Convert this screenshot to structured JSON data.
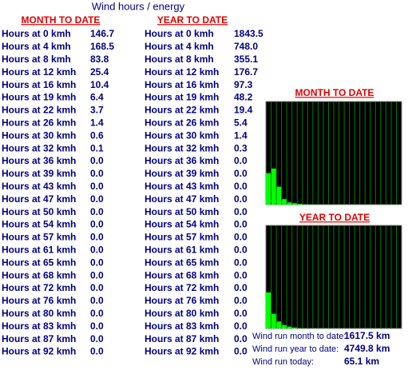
{
  "title": "Wind hours / energy",
  "categories": [
    "Hours at 0 kmh",
    "Hours at 4 kmh",
    "Hours at 8 kmh",
    "Hours at 12 kmh",
    "Hours at 16 kmh",
    "Hours at 19 kmh",
    "Hours at 22 kmh",
    "Hours at 26 kmh",
    "Hours at 30 kmh",
    "Hours at 32 kmh",
    "Hours at 36 kmh",
    "Hours at 39 kmh",
    "Hours at 43 kmh",
    "Hours at 47 kmh",
    "Hours at 50 kmh",
    "Hours at 54 kmh",
    "Hours at 57 kmh",
    "Hours at 61 kmh",
    "Hours at 65 kmh",
    "Hours at 68 kmh",
    "Hours at 72 kmh",
    "Hours at 76 kmh",
    "Hours at 80 kmh",
    "Hours at 83 kmh",
    "Hours at 87 kmh",
    "Hours at 92 kmh"
  ],
  "month": {
    "heading": "MONTH TO DATE",
    "color": "#00ff00",
    "values": [
      146.7,
      168.5,
      83.8,
      25.4,
      10.4,
      6.4,
      3.7,
      1.4,
      0.6,
      0.1,
      0,
      0,
      0,
      0,
      0,
      0,
      0,
      0,
      0,
      0,
      0,
      0,
      0,
      0,
      0,
      0
    ],
    "value_labels": [
      "146.7",
      "168.5",
      "83.8",
      "25.4",
      "10.4",
      "6.4",
      "3.7",
      "1.4",
      "0.6",
      "0.1",
      "0.0",
      "0.0",
      "0.0",
      "0.0",
      "0.0",
      "0.0",
      "0.0",
      "0.0",
      "0.0",
      "0.0",
      "0.0",
      "0.0",
      "0.0",
      "0.0",
      "0.0",
      "0.0"
    ]
  },
  "year": {
    "heading": "YEAR TO DATE",
    "color": "#00ff00",
    "values": [
      1843.5,
      748.0,
      355.1,
      176.7,
      97.3,
      48.2,
      19.4,
      5.4,
      1.4,
      0.3,
      0,
      0,
      0,
      0,
      0,
      0,
      0,
      0,
      0,
      0,
      0,
      0,
      0,
      0,
      0,
      0
    ],
    "value_labels": [
      "1843.5",
      "748.0",
      "355.1",
      "176.7",
      "97.3",
      "48.2",
      "19.4",
      "5.4",
      "1.4",
      "0.3",
      "0.0",
      "0.0",
      "0.0",
      "0.0",
      "0.0",
      "0.0",
      "0.0",
      "0.0",
      "0.0",
      "0.0",
      "0.0",
      "0.0",
      "0.0",
      "0.0",
      "0.0",
      "0.0"
    ]
  },
  "wind_run": [
    {
      "label": "Wind run month to date:",
      "value": "1617.5 km"
    },
    {
      "label": "Wind run year to date:",
      "value": "4749.8 km"
    },
    {
      "label": "Wind run today:",
      "value": "65.1 km"
    }
  ]
}
